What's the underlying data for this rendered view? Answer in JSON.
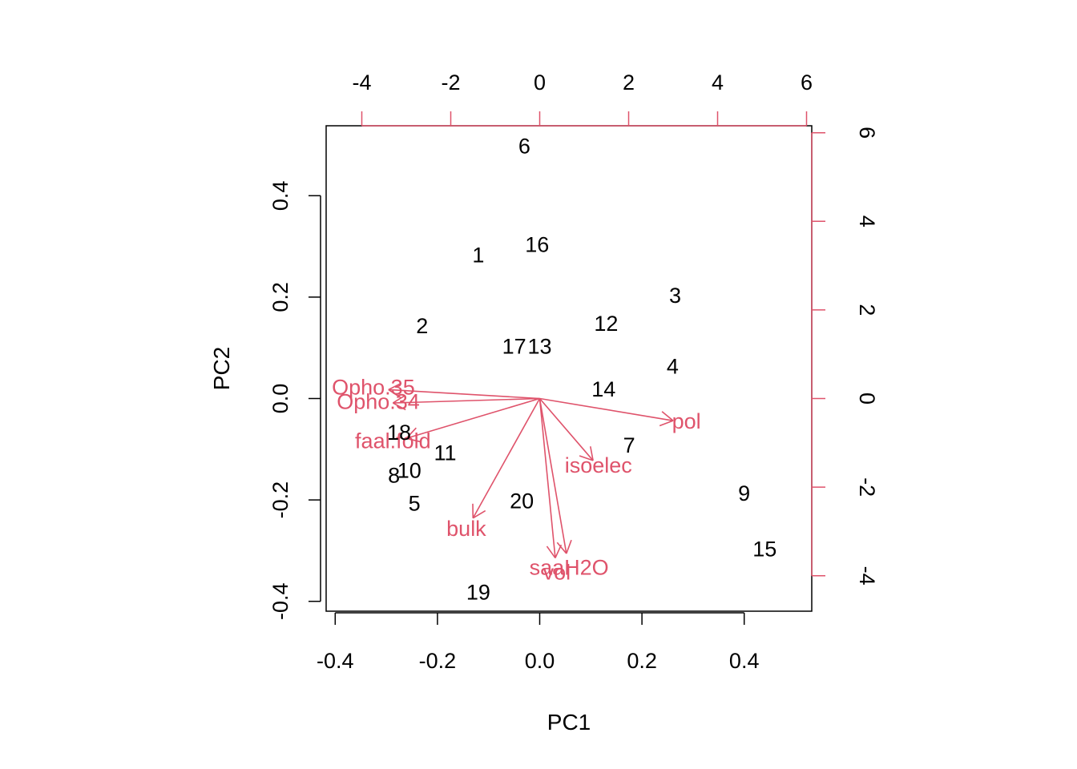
{
  "chart_data": {
    "type": "scatter",
    "subtype": "biplot",
    "xlabel": "PC1",
    "ylabel": "PC2",
    "xlim": [
      -0.4,
      0.5
    ],
    "ylim": [
      -0.4,
      0.5
    ],
    "x_ticks": [
      "-0.4",
      "-0.2",
      "0.0",
      "0.2",
      "0.4"
    ],
    "y_ticks": [
      "-0.4",
      "-0.2",
      "0.0",
      "0.2",
      "0.4"
    ],
    "top_ticks": [
      "-4",
      "-2",
      "0",
      "2",
      "4",
      "6"
    ],
    "right_ticks": [
      "-4",
      "-2",
      "0",
      "2",
      "4",
      "6"
    ],
    "grid": false,
    "colors": {
      "points": "#000000",
      "loadings": "#DF536B",
      "axes": "#000000"
    },
    "points": [
      {
        "label": "1",
        "x": -0.12,
        "y": 0.28
      },
      {
        "label": "2",
        "x": -0.23,
        "y": 0.14
      },
      {
        "label": "3",
        "x": 0.265,
        "y": 0.2
      },
      {
        "label": "4",
        "x": 0.26,
        "y": 0.06
      },
      {
        "label": "5",
        "x": -0.245,
        "y": -0.21
      },
      {
        "label": "6",
        "x": -0.03,
        "y": 0.495
      },
      {
        "label": "7",
        "x": 0.175,
        "y": -0.095
      },
      {
        "label": "8",
        "x": -0.285,
        "y": -0.155
      },
      {
        "label": "9",
        "x": 0.4,
        "y": -0.19
      },
      {
        "label": "10",
        "x": -0.255,
        "y": -0.145
      },
      {
        "label": "11",
        "x": -0.185,
        "y": -0.11
      },
      {
        "label": "12",
        "x": 0.13,
        "y": 0.145
      },
      {
        "label": "13",
        "x": 0.0,
        "y": 0.1
      },
      {
        "label": "14",
        "x": 0.125,
        "y": 0.015
      },
      {
        "label": "15",
        "x": 0.44,
        "y": -0.3
      },
      {
        "label": "16",
        "x": -0.005,
        "y": 0.3
      },
      {
        "label": "17",
        "x": -0.05,
        "y": 0.1
      },
      {
        "label": "18",
        "x": -0.275,
        "y": -0.07
      },
      {
        "label": "19",
        "x": -0.12,
        "y": -0.385
      },
      {
        "label": "20",
        "x": -0.035,
        "y": -0.205
      }
    ],
    "loadings": [
      {
        "name": "Opho.35",
        "x": -3.4,
        "y": 0.2
      },
      {
        "name": "Opho.34",
        "x": -3.3,
        "y": -0.1
      },
      {
        "name": "faal.fold",
        "x": -3.0,
        "y": -0.9
      },
      {
        "name": "bulk",
        "x": -1.5,
        "y": -2.7
      },
      {
        "name": "vol",
        "x": 0.35,
        "y": -3.6
      },
      {
        "name": "saaH2O",
        "x": 0.6,
        "y": -3.5
      },
      {
        "name": "isoelec",
        "x": 1.2,
        "y": -1.4
      },
      {
        "name": "pol",
        "x": 3.0,
        "y": -0.5
      }
    ]
  }
}
